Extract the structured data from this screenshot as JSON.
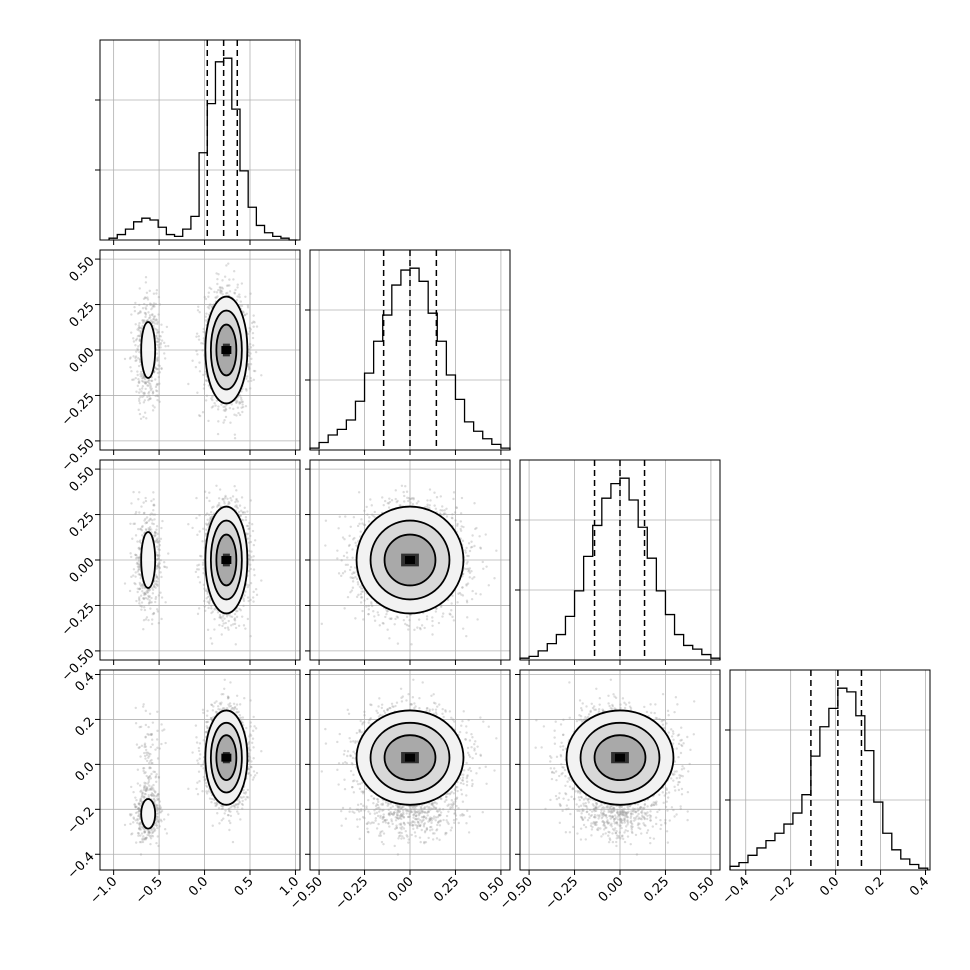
{
  "chart_data": {
    "type": "corner",
    "grid": true,
    "quantile_lines": "dashed",
    "variables": [
      {
        "range": [
          -1.15,
          1.05
        ],
        "ticks": [
          -1.0,
          -0.5,
          0.0,
          0.5,
          1.0
        ],
        "tick_labels": [
          "−1.0",
          "−0.5",
          "0.0",
          "0.5",
          "1.0"
        ],
        "quantiles": [
          0.03,
          0.21,
          0.36
        ],
        "hist": {
          "bins": [
            -1.05,
            -0.96,
            -0.87,
            -0.78,
            -0.69,
            -0.6,
            -0.51,
            -0.42,
            -0.33,
            -0.24,
            -0.15,
            -0.06,
            0.03,
            0.12,
            0.21,
            0.3,
            0.39,
            0.48,
            0.57,
            0.66,
            0.75,
            0.84,
            0.93,
            1.02
          ],
          "counts": [
            1,
            3,
            6,
            10,
            12,
            11,
            7,
            3,
            2,
            6,
            13,
            48,
            75,
            98,
            100,
            72,
            38,
            18,
            8,
            4,
            2,
            1,
            0
          ]
        },
        "clusters": [
          {
            "mean": -0.62,
            "sd": 0.07,
            "weight": 0.18
          },
          {
            "mean": 0.24,
            "sd": 0.11,
            "weight": 0.82
          }
        ]
      },
      {
        "range": [
          -0.55,
          0.55
        ],
        "ticks": [
          -0.5,
          -0.25,
          0.0,
          0.25,
          0.5
        ],
        "tick_labels": [
          "−0.50",
          "−0.25",
          "0.00",
          "0.25",
          "0.50"
        ],
        "quantiles": [
          -0.145,
          0.0,
          0.145
        ],
        "hist": {
          "bins": [
            -0.55,
            -0.5,
            -0.45,
            -0.4,
            -0.35,
            -0.3,
            -0.25,
            -0.2,
            -0.15,
            -0.1,
            -0.05,
            0.0,
            0.05,
            0.1,
            0.15,
            0.2,
            0.25,
            0.3,
            0.35,
            0.4,
            0.45,
            0.5,
            0.55
          ],
          "counts": [
            1,
            4,
            8,
            11,
            16,
            26,
            41,
            58,
            72,
            88,
            96,
            97,
            90,
            73,
            58,
            40,
            27,
            15,
            10,
            6,
            3,
            1
          ]
        },
        "clusters": [
          {
            "mean": 0.0,
            "sd": 0.14,
            "weight": 1.0
          }
        ]
      },
      {
        "range": [
          -0.55,
          0.55
        ],
        "ticks": [
          -0.5,
          -0.25,
          0.0,
          0.25,
          0.5
        ],
        "tick_labels": [
          "−0.50",
          "−0.25",
          "0.00",
          "0.25",
          "0.50"
        ],
        "quantiles": [
          -0.14,
          0.0,
          0.135
        ],
        "hist": {
          "bins": [
            -0.55,
            -0.5,
            -0.45,
            -0.4,
            -0.35,
            -0.3,
            -0.25,
            -0.2,
            -0.15,
            -0.1,
            -0.05,
            0.0,
            0.05,
            0.1,
            0.15,
            0.2,
            0.25,
            0.3,
            0.35,
            0.4,
            0.45,
            0.5,
            0.55
          ],
          "counts": [
            1,
            2,
            5,
            9,
            14,
            24,
            38,
            57,
            74,
            89,
            97,
            100,
            88,
            73,
            56,
            38,
            25,
            14,
            8,
            6,
            3,
            1
          ]
        },
        "clusters": [
          {
            "mean": 0.0,
            "sd": 0.14,
            "weight": 1.0
          }
        ]
      },
      {
        "range": [
          -0.47,
          0.42
        ],
        "ticks": [
          -0.4,
          -0.2,
          0.0,
          0.2,
          0.4
        ],
        "tick_labels": [
          "−0.4",
          "−0.2",
          "0.0",
          "0.2",
          "0.4"
        ],
        "quantiles": [
          -0.11,
          0.01,
          0.115
        ],
        "hist": {
          "bins": [
            -0.47,
            -0.43,
            -0.39,
            -0.35,
            -0.31,
            -0.27,
            -0.23,
            -0.19,
            -0.15,
            -0.11,
            -0.07,
            -0.03,
            0.01,
            0.05,
            0.09,
            0.13,
            0.17,
            0.21,
            0.25,
            0.29,
            0.33,
            0.37,
            0.41
          ],
          "counts": [
            2,
            4,
            8,
            12,
            16,
            20,
            25,
            31,
            41,
            62,
            78,
            88,
            99,
            97,
            84,
            65,
            37,
            20,
            11,
            6,
            3,
            1
          ]
        },
        "clusters": [
          {
            "mean": -0.22,
            "sd": 0.06,
            "weight": 0.15
          },
          {
            "mean": 0.03,
            "sd": 0.1,
            "weight": 0.85
          }
        ]
      }
    ],
    "pair_modes": {
      "3_0": [
        {
          "cx": -0.62,
          "cy": -0.22
        },
        {
          "cx": 0.24,
          "cy": 0.03
        }
      ],
      "1_0": [
        {
          "cx": -0.62,
          "cy": 0.0
        },
        {
          "cx": 0.24,
          "cy": 0.0
        }
      ],
      "2_0": [
        {
          "cx": -0.62,
          "cy": 0.0
        },
        {
          "cx": 0.24,
          "cy": 0.0
        }
      ]
    }
  }
}
